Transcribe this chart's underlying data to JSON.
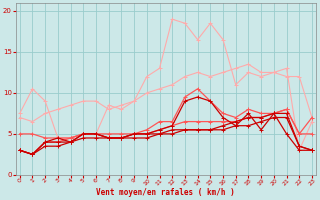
{
  "x": [
    0,
    1,
    2,
    3,
    4,
    5,
    6,
    7,
    8,
    9,
    10,
    11,
    12,
    13,
    14,
    15,
    16,
    17,
    18,
    19,
    20,
    21,
    22,
    23
  ],
  "line_light1": [
    7.5,
    10.5,
    9.0,
    4.5,
    4.5,
    5.0,
    5.0,
    8.5,
    8.0,
    9.0,
    12.0,
    13.0,
    19.0,
    18.5,
    16.5,
    18.5,
    16.5,
    11.0,
    12.5,
    12.0,
    12.5,
    13.0,
    3.0,
    6.5
  ],
  "line_light2": [
    7.0,
    6.5,
    7.5,
    8.0,
    8.5,
    9.0,
    9.0,
    8.0,
    8.5,
    9.0,
    10.0,
    10.5,
    11.0,
    12.0,
    12.5,
    12.0,
    12.5,
    13.0,
    13.5,
    12.5,
    12.5,
    12.0,
    12.0,
    7.0
  ],
  "line_med1": [
    3.0,
    2.5,
    4.0,
    4.0,
    4.5,
    5.0,
    5.0,
    4.5,
    4.5,
    5.0,
    5.5,
    6.5,
    6.5,
    9.5,
    10.5,
    9.0,
    7.5,
    7.0,
    8.0,
    7.5,
    7.5,
    8.0,
    5.0,
    7.0
  ],
  "line_med2": [
    5.0,
    5.0,
    4.5,
    4.5,
    4.5,
    5.0,
    5.0,
    5.0,
    5.0,
    5.0,
    5.0,
    5.5,
    6.0,
    6.5,
    6.5,
    6.5,
    6.5,
    6.5,
    7.0,
    7.0,
    7.5,
    8.0,
    5.0,
    5.0
  ],
  "line_dark1": [
    3.0,
    2.5,
    4.0,
    4.0,
    4.0,
    5.0,
    5.0,
    4.5,
    4.5,
    5.0,
    5.0,
    5.0,
    5.5,
    5.5,
    5.5,
    5.5,
    6.0,
    6.5,
    7.0,
    7.0,
    7.5,
    7.5,
    3.5,
    3.0
  ],
  "line_dark2": [
    3.0,
    2.5,
    3.5,
    3.5,
    4.0,
    4.5,
    4.5,
    4.5,
    4.5,
    4.5,
    4.5,
    5.0,
    5.0,
    5.5,
    5.5,
    5.5,
    5.5,
    6.0,
    6.0,
    6.5,
    7.0,
    7.0,
    3.5,
    3.0
  ],
  "line_dark3": [
    3.0,
    2.5,
    4.0,
    4.5,
    4.0,
    5.0,
    5.0,
    4.5,
    4.5,
    5.0,
    5.0,
    5.5,
    6.0,
    9.0,
    9.5,
    9.0,
    7.0,
    6.0,
    7.5,
    5.5,
    7.5,
    5.0,
    3.0,
    3.0
  ],
  "color_light": "#ffaaaa",
  "color_med": "#ff5555",
  "color_dark": "#cc0000",
  "bg_color": "#cce8e8",
  "grid_color": "#99cccc",
  "axis_color": "#cc0000",
  "xlabel": "Vent moyen/en rafales ( km/h )",
  "ylim": [
    0,
    21
  ],
  "xlim": [
    -0.3,
    23.3
  ],
  "yticks": [
    0,
    5,
    10,
    15,
    20
  ],
  "xticks": [
    0,
    1,
    2,
    3,
    4,
    5,
    6,
    7,
    8,
    9,
    10,
    11,
    12,
    13,
    14,
    15,
    16,
    17,
    18,
    19,
    20,
    21,
    22,
    23
  ]
}
